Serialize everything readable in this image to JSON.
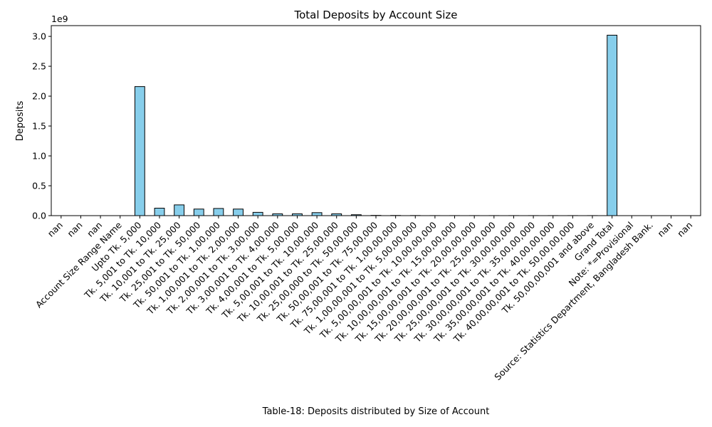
{
  "chart_data": {
    "type": "bar",
    "title": "Total Deposits by Account Size",
    "xlabel": "Table-18:  Deposits  distributed by Size of Account",
    "ylabel": "Deposits",
    "y_multiplier_label": "1e9",
    "ylim": [
      0,
      3.18
    ],
    "y_ticks": [
      0.0,
      0.5,
      1.0,
      1.5,
      2.0,
      2.5,
      3.0
    ],
    "y_tick_labels": [
      "0.0",
      "0.5",
      "1.0",
      "1.5",
      "2.0",
      "2.5",
      "3.0"
    ],
    "categories": [
      "nan",
      "nan",
      "nan",
      "Account Size Range Name",
      "Upto Tk. 5,000",
      "Tk. 5,001 to Tk. 10,000",
      "Tk. 10,001 to Tk. 25,000",
      "Tk. 25,001 to Tk. 50,000",
      "Tk. 50,001 to Tk. 1,00,000",
      "Tk. 1,00,001 to Tk. 2,00,000",
      "Tk. 2,00,001 to Tk. 3,00,000",
      "Tk. 3,00,001 to Tk. 4,00,000",
      "Tk. 4,00,001 to Tk. 5,00,000",
      "Tk. 5,00,001 to Tk. 10,00,000",
      "Tk. 10,00,001 to Tk. 25,00,000",
      "Tk. 25,00,000 to Tk. 50,00,000",
      "Tk. 50,00,001 to Tk. 75,00,000",
      "Tk. 75,00,001 to Tk. 1,00,00,000",
      "Tk. 1,00,00,001 to Tk. 5,00,00,000",
      "Tk. 5,00,00,001 to Tk. 10,00,00,000",
      "Tk. 10,00,00,001 to Tk. 15,00,00,000",
      "Tk. 15,00,00,001 to Tk. 20,00,00,000",
      "Tk. 20,00,00,001 to Tk. 25,00,00,000",
      "Tk. 25,00,00,001 to Tk. 30,00,00,000",
      "Tk. 30,00,00,001 to Tk. 35,00,00,000",
      "Tk. 35,00,00,001 to Tk. 40,00,00,000",
      "Tk. 40,00,00,001 to Tk. 50,00,00,000",
      "Tk. 50,00,00,001 and above",
      "Grand Total",
      "Note: *=Provisional",
      "Source: Statistics Department, Bangladesh Bank.",
      "nan",
      "nan"
    ],
    "values": [
      0,
      0,
      0,
      0,
      2.16,
      0.125,
      0.18,
      0.11,
      0.12,
      0.11,
      0.055,
      0.03,
      0.03,
      0.05,
      0.03,
      0.015,
      0.004,
      0.003,
      0.002,
      0.001,
      0.001,
      0.001,
      0.001,
      0.001,
      0.001,
      0.001,
      0.001,
      0.001,
      3.02,
      0,
      0,
      0,
      0
    ],
    "bar_color": "#87CEEB",
    "edge_color": "#000000",
    "grid": false,
    "legend": "none"
  }
}
